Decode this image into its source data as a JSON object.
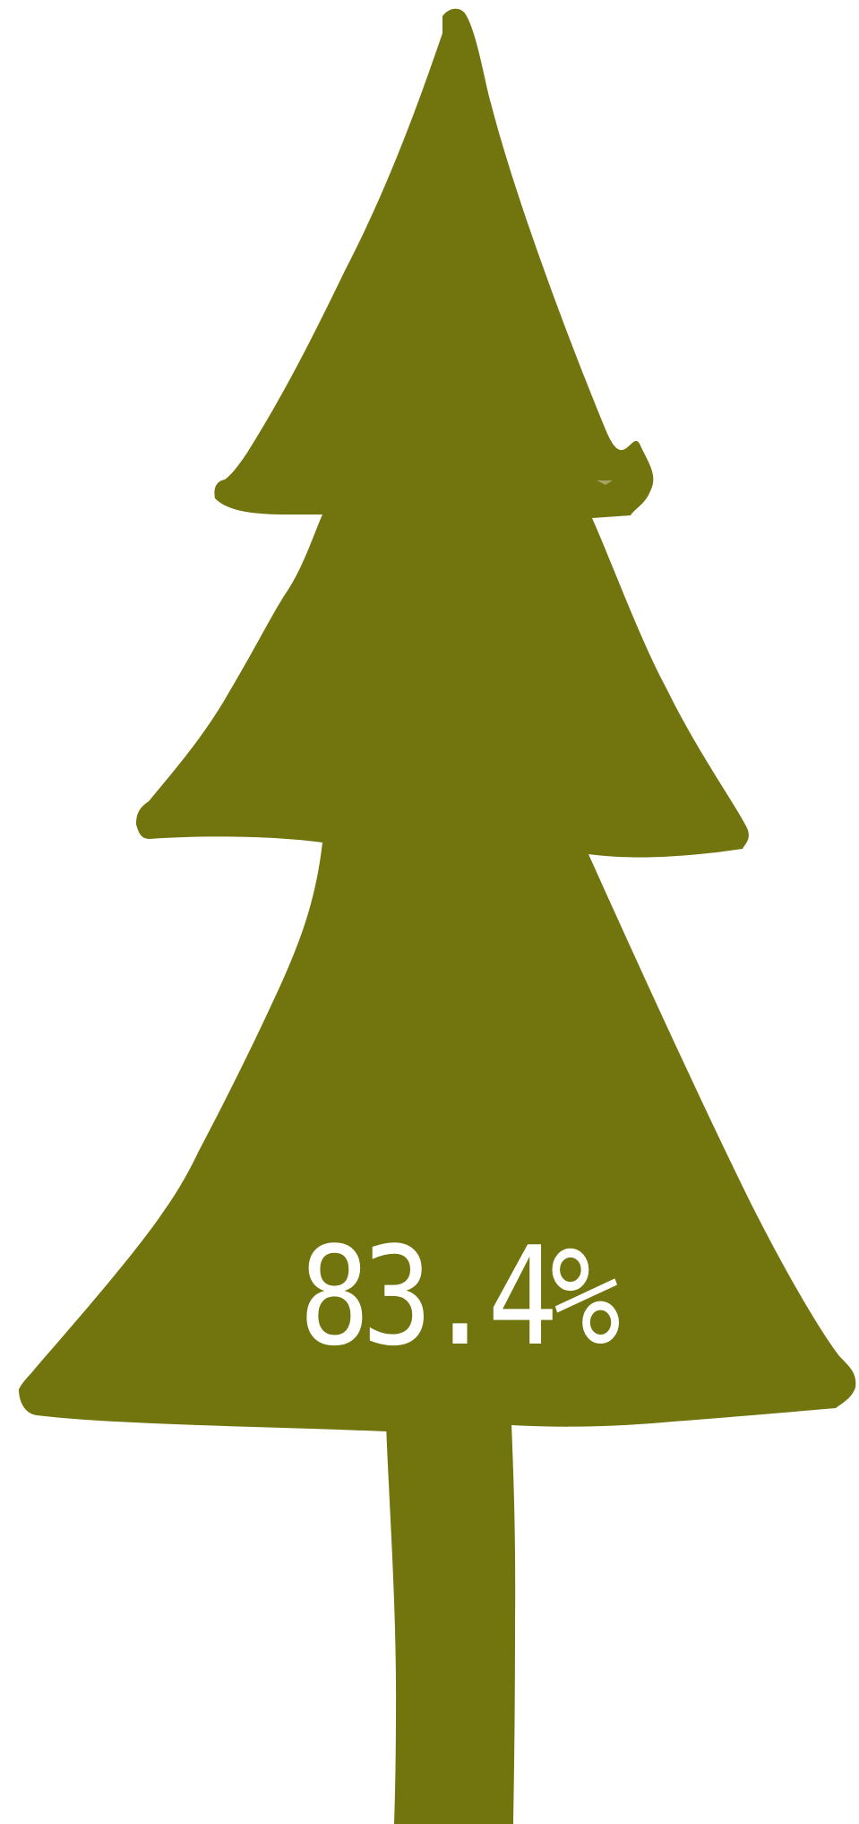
{
  "value_label": "83.4%",
  "value": 83.4,
  "colors": {
    "tree": "#72740d",
    "label": "#ffffff",
    "background": "#ffffff"
  }
}
